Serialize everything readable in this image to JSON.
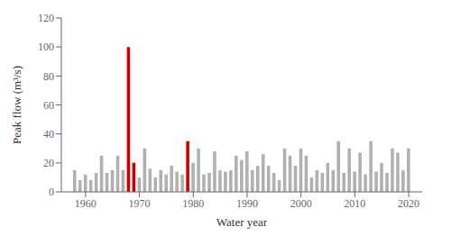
{
  "chart_data": {
    "type": "bar",
    "x": [
      1958,
      1959,
      1960,
      1961,
      1962,
      1963,
      1964,
      1965,
      1966,
      1967,
      1968,
      1969,
      1970,
      1971,
      1972,
      1973,
      1974,
      1975,
      1976,
      1977,
      1978,
      1979,
      1980,
      1981,
      1982,
      1983,
      1984,
      1985,
      1986,
      1987,
      1988,
      1989,
      1990,
      1991,
      1992,
      1993,
      1994,
      1995,
      1996,
      1997,
      1998,
      1999,
      2000,
      2001,
      2002,
      2003,
      2004,
      2005,
      2006,
      2007,
      2008,
      2009,
      2010,
      2011,
      2012,
      2013,
      2014,
      2015,
      2016,
      2017,
      2018,
      2019,
      2020
    ],
    "values": [
      15,
      8,
      12,
      8,
      13,
      25,
      13,
      15,
      25,
      15,
      100,
      20,
      10,
      30,
      16,
      10,
      15,
      12,
      18,
      14,
      12,
      35,
      20,
      30,
      12,
      13,
      28,
      15,
      14,
      15,
      25,
      22,
      28,
      15,
      18,
      26,
      18,
      13,
      8,
      30,
      25,
      18,
      30,
      25,
      10,
      15,
      13,
      20,
      15,
      35,
      13,
      30,
      14,
      27,
      12,
      35,
      14,
      20,
      13,
      30,
      27,
      15,
      30
    ],
    "colors": [
      "#b0b0b0",
      "#b0b0b0",
      "#b0b0b0",
      "#b0b0b0",
      "#b0b0b0",
      "#b0b0b0",
      "#b0b0b0",
      "#b0b0b0",
      "#b0b0b0",
      "#b0b0b0",
      "#cc0000",
      "#cc0000",
      "#b0b0b0",
      "#b0b0b0",
      "#b0b0b0",
      "#b0b0b0",
      "#b0b0b0",
      "#b0b0b0",
      "#b0b0b0",
      "#b0b0b0",
      "#b0b0b0",
      "#cc0000",
      "#b0b0b0",
      "#b0b0b0",
      "#b0b0b0",
      "#b0b0b0",
      "#b0b0b0",
      "#b0b0b0",
      "#b0b0b0",
      "#b0b0b0",
      "#b0b0b0",
      "#b0b0b0",
      "#b0b0b0",
      "#b0b0b0",
      "#b0b0b0",
      "#b0b0b0",
      "#b0b0b0",
      "#b0b0b0",
      "#b0b0b0",
      "#b0b0b0",
      "#b0b0b0",
      "#b0b0b0",
      "#b0b0b0",
      "#b0b0b0",
      "#b0b0b0",
      "#b0b0b0",
      "#b0b0b0",
      "#b0b0b0",
      "#b0b0b0",
      "#b0b0b0",
      "#b0b0b0",
      "#b0b0b0",
      "#b0b0b0",
      "#b0b0b0",
      "#b0b0b0",
      "#b0b0b0",
      "#b0b0b0",
      "#b0b0b0",
      "#b0b0b0",
      "#b0b0b0",
      "#b0b0b0",
      "#b0b0b0",
      "#b0b0b0"
    ],
    "xlabel": "Water year",
    "ylabel": "Peak flow (m³/s)",
    "xlim": [
      1955.5,
      2022.5
    ],
    "xticks": [
      1960,
      1970,
      1980,
      1990,
      2000,
      2010,
      2020
    ],
    "ylim": [
      0,
      120
    ],
    "yticks": [
      0,
      20,
      40,
      60,
      80,
      100,
      120
    ],
    "grid": false
  }
}
